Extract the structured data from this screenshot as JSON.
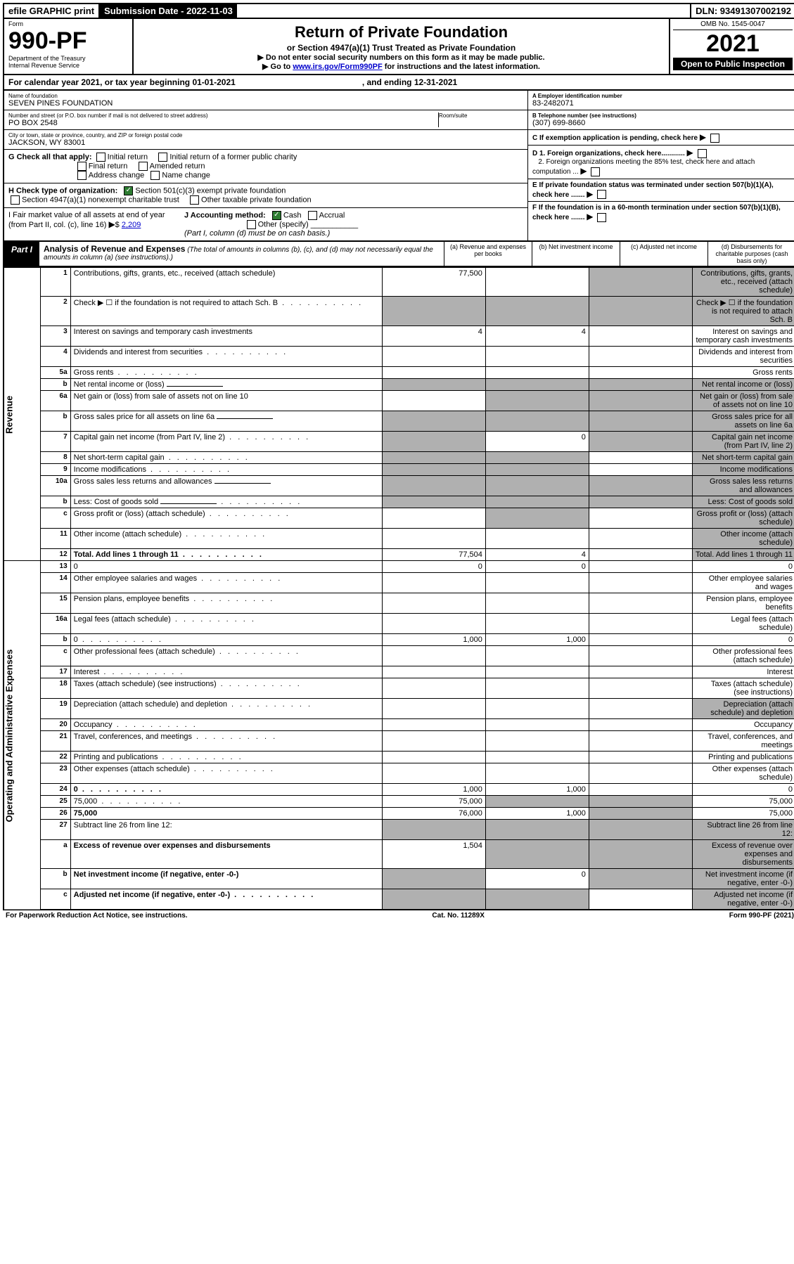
{
  "topbar": {
    "efile": "efile GRAPHIC print",
    "submission_label": "Submission Date - 2022-11-03",
    "dln": "DLN: 93491307002192"
  },
  "header": {
    "form_label": "Form",
    "form_no": "990-PF",
    "dept1": "Department of the Treasury",
    "dept2": "Internal Revenue Service",
    "title": "Return of Private Foundation",
    "subtitle": "or Section 4947(a)(1) Trust Treated as Private Foundation",
    "note1": "▶ Do not enter social security numbers on this form as it may be made public.",
    "note2_pre": "▶ Go to ",
    "note2_link": "www.irs.gov/Form990PF",
    "note2_post": " for instructions and the latest information.",
    "omb": "OMB No. 1545-0047",
    "year": "2021",
    "open": "Open to Public Inspection"
  },
  "cal": {
    "text": "For calendar year 2021, or tax year beginning 01-01-2021",
    "end": ", and ending 12-31-2021"
  },
  "info": {
    "name_lbl": "Name of foundation",
    "name": "SEVEN PINES FOUNDATION",
    "addr_lbl": "Number and street (or P.O. box number if mail is not delivered to street address)",
    "addr": "PO BOX 2548",
    "room_lbl": "Room/suite",
    "city_lbl": "City or town, state or province, country, and ZIP or foreign postal code",
    "city": "JACKSON, WY  83001",
    "a_lbl": "A Employer identification number",
    "a_val": "83-2482071",
    "b_lbl": "B Telephone number (see instructions)",
    "b_val": "(307) 699-8660",
    "c_lbl": "C If exemption application is pending, check here",
    "d1": "D 1. Foreign organizations, check here............",
    "d2": "2. Foreign organizations meeting the 85% test, check here and attach computation ...",
    "e": "E  If private foundation status was terminated under section 507(b)(1)(A), check here .......",
    "f": "F  If the foundation is in a 60-month termination under section 507(b)(1)(B), check here .......",
    "g_lbl": "G Check all that apply:",
    "g_opts": [
      "Initial return",
      "Initial return of a former public charity",
      "Final return",
      "Amended return",
      "Address change",
      "Name change"
    ],
    "h_lbl": "H Check type of organization:",
    "h1": "Section 501(c)(3) exempt private foundation",
    "h2": "Section 4947(a)(1) nonexempt charitable trust",
    "h3": "Other taxable private foundation",
    "i_lbl": "I Fair market value of all assets at end of year (from Part II, col. (c), line 16)",
    "i_val": "2,209",
    "j_lbl": "J Accounting method:",
    "j1": "Cash",
    "j2": "Accrual",
    "j3": "Other (specify)",
    "j_note": "(Part I, column (d) must be on cash basis.)"
  },
  "part1": {
    "label": "Part I",
    "title": "Analysis of Revenue and Expenses",
    "desc": "(The total of amounts in columns (b), (c), and (d) may not necessarily equal the amounts in column (a) (see instructions).)",
    "cols": {
      "a": "(a)   Revenue and expenses per books",
      "b": "(b)   Net investment income",
      "c": "(c)   Adjusted net income",
      "d": "(d)   Disbursements for charitable purposes (cash basis only)"
    }
  },
  "side_labels": {
    "rev": "Revenue",
    "exp": "Operating and Administrative Expenses"
  },
  "rows": [
    {
      "n": "1",
      "d": "Contributions, gifts, grants, etc., received (attach schedule)",
      "a": "77,500",
      "shade_c": true,
      "shade_d": true
    },
    {
      "n": "2",
      "d": "Check ▶ ☐ if the foundation is not required to attach Sch. B",
      "dots": true,
      "shade_a": true,
      "shade_b": true,
      "shade_c": true,
      "shade_d": true
    },
    {
      "n": "3",
      "d": "Interest on savings and temporary cash investments",
      "a": "4",
      "b": "4"
    },
    {
      "n": "4",
      "d": "Dividends and interest from securities",
      "dots": true
    },
    {
      "n": "5a",
      "d": "Gross rents",
      "dots": true
    },
    {
      "n": "b",
      "d": "Net rental income or (loss)",
      "inline": true,
      "shade_a": true,
      "shade_b": true,
      "shade_c": true,
      "shade_d": true
    },
    {
      "n": "6a",
      "d": "Net gain or (loss) from sale of assets not on line 10",
      "shade_b": true,
      "shade_c": true,
      "shade_d": true
    },
    {
      "n": "b",
      "d": "Gross sales price for all assets on line 6a",
      "inline": true,
      "shade_a": true,
      "shade_b": true,
      "shade_c": true,
      "shade_d": true
    },
    {
      "n": "7",
      "d": "Capital gain net income (from Part IV, line 2)",
      "dots": true,
      "shade_a": true,
      "b": "0",
      "shade_c": true,
      "shade_d": true
    },
    {
      "n": "8",
      "d": "Net short-term capital gain",
      "dots": true,
      "shade_a": true,
      "shade_b": true,
      "shade_d": true
    },
    {
      "n": "9",
      "d": "Income modifications",
      "dots": true,
      "shade_a": true,
      "shade_b": true,
      "shade_d": true
    },
    {
      "n": "10a",
      "d": "Gross sales less returns and allowances",
      "inline": true,
      "shade_a": true,
      "shade_b": true,
      "shade_c": true,
      "shade_d": true
    },
    {
      "n": "b",
      "d": "Less: Cost of goods sold",
      "dots": true,
      "inline": true,
      "shade_a": true,
      "shade_b": true,
      "shade_c": true,
      "shade_d": true
    },
    {
      "n": "c",
      "d": "Gross profit or (loss) (attach schedule)",
      "dots": true,
      "shade_b": true,
      "shade_d": true
    },
    {
      "n": "11",
      "d": "Other income (attach schedule)",
      "dots": true,
      "shade_d": true
    },
    {
      "n": "12",
      "d": "Total. Add lines 1 through 11",
      "dots": true,
      "bold": true,
      "a": "77,504",
      "b": "4",
      "shade_d": true
    },
    {
      "n": "13",
      "d": "0",
      "a": "0",
      "b": "0"
    },
    {
      "n": "14",
      "d": "Other employee salaries and wages",
      "dots": true
    },
    {
      "n": "15",
      "d": "Pension plans, employee benefits",
      "dots": true
    },
    {
      "n": "16a",
      "d": "Legal fees (attach schedule)",
      "dots": true
    },
    {
      "n": "b",
      "d": "0",
      "dots": true,
      "a": "1,000",
      "b": "1,000"
    },
    {
      "n": "c",
      "d": "Other professional fees (attach schedule)",
      "dots": true
    },
    {
      "n": "17",
      "d": "Interest",
      "dots": true
    },
    {
      "n": "18",
      "d": "Taxes (attach schedule) (see instructions)",
      "dots": true
    },
    {
      "n": "19",
      "d": "Depreciation (attach schedule) and depletion",
      "dots": true,
      "shade_d": true
    },
    {
      "n": "20",
      "d": "Occupancy",
      "dots": true
    },
    {
      "n": "21",
      "d": "Travel, conferences, and meetings",
      "dots": true
    },
    {
      "n": "22",
      "d": "Printing and publications",
      "dots": true
    },
    {
      "n": "23",
      "d": "Other expenses (attach schedule)",
      "dots": true
    },
    {
      "n": "24",
      "d": "0",
      "dots": true,
      "bold": true,
      "a": "1,000",
      "b": "1,000"
    },
    {
      "n": "25",
      "d": "75,000",
      "dots": true,
      "a": "75,000",
      "shade_b": true,
      "shade_c": true
    },
    {
      "n": "26",
      "d": "75,000",
      "bold": true,
      "a": "76,000",
      "b": "1,000",
      "shade_c": true
    },
    {
      "n": "27",
      "d": "Subtract line 26 from line 12:",
      "shade_a": true,
      "shade_b": true,
      "shade_c": true,
      "shade_d": true
    },
    {
      "n": "a",
      "d": "Excess of revenue over expenses and disbursements",
      "bold": true,
      "a": "1,504",
      "shade_b": true,
      "shade_c": true,
      "shade_d": true
    },
    {
      "n": "b",
      "d": "Net investment income (if negative, enter -0-)",
      "bold": true,
      "shade_a": true,
      "b": "0",
      "shade_c": true,
      "shade_d": true
    },
    {
      "n": "c",
      "d": "Adjusted net income (if negative, enter -0-)",
      "dots": true,
      "bold": true,
      "shade_a": true,
      "shade_b": true,
      "shade_d": true
    }
  ],
  "footer": {
    "left": "For Paperwork Reduction Act Notice, see instructions.",
    "mid": "Cat. No. 11289X",
    "right": "Form 990-PF (2021)"
  }
}
